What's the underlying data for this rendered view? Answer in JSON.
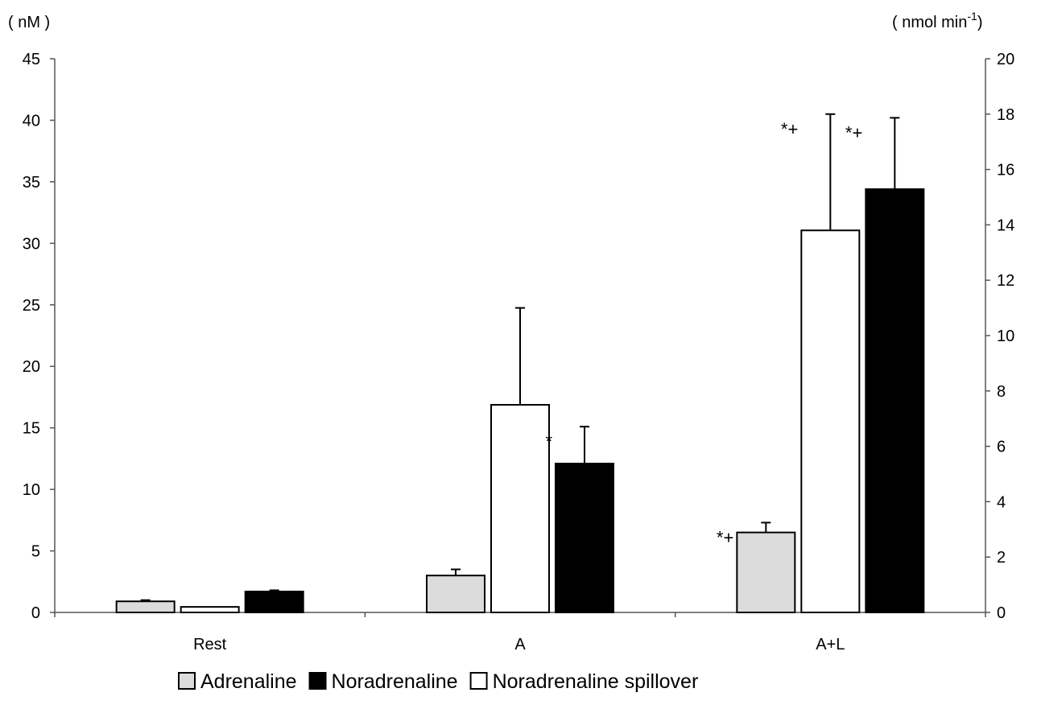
{
  "chart_data": {
    "type": "bar",
    "left_axis_unit": "( nM )",
    "right_axis_unit": {
      "text": "( nmol min",
      "sup": "-1",
      "close": ")"
    },
    "categories": [
      "Rest",
      "A",
      "A+L"
    ],
    "ylim_left": [
      0,
      45
    ],
    "yticks_left": [
      "0",
      "5",
      "10",
      "15",
      "20",
      "25",
      "30",
      "35",
      "40",
      "45"
    ],
    "ylim_right": [
      0,
      20
    ],
    "yticks_right": [
      "0",
      "2",
      "4",
      "6",
      "8",
      "10",
      "12",
      "14",
      "16",
      "18",
      "20"
    ],
    "grid": false,
    "legend_position": "bottom",
    "series": [
      {
        "name": "Adrenaline",
        "axis": "left",
        "color": "#dcdcdc",
        "values": [
          0.9,
          3.0,
          6.5
        ],
        "errors": [
          0.1,
          0.5,
          0.8
        ]
      },
      {
        "name": "Noradrenaline spillover",
        "axis": "right",
        "color": "#ffffff",
        "values": [
          0.2,
          7.5,
          13.8
        ],
        "errors": [
          0,
          3.5,
          4.2
        ]
      },
      {
        "name": "Noradrenaline",
        "axis": "left",
        "color": "#000000",
        "values": [
          1.7,
          12.1,
          34.4
        ],
        "errors": [
          0.1,
          3.0,
          5.8
        ]
      }
    ],
    "legend_order": [
      "Adrenaline",
      "Noradrenaline",
      "Noradrenaline spillover"
    ],
    "annotations": [
      {
        "text": "*",
        "category": "A",
        "series": "Noradrenaline"
      },
      {
        "text": "*+",
        "category": "A+L",
        "series": "Adrenaline"
      },
      {
        "text": "*+",
        "category": "A+L",
        "series": "Noradrenaline spillover"
      },
      {
        "text": "*+",
        "category": "A+L",
        "series": "Noradrenaline"
      }
    ]
  }
}
